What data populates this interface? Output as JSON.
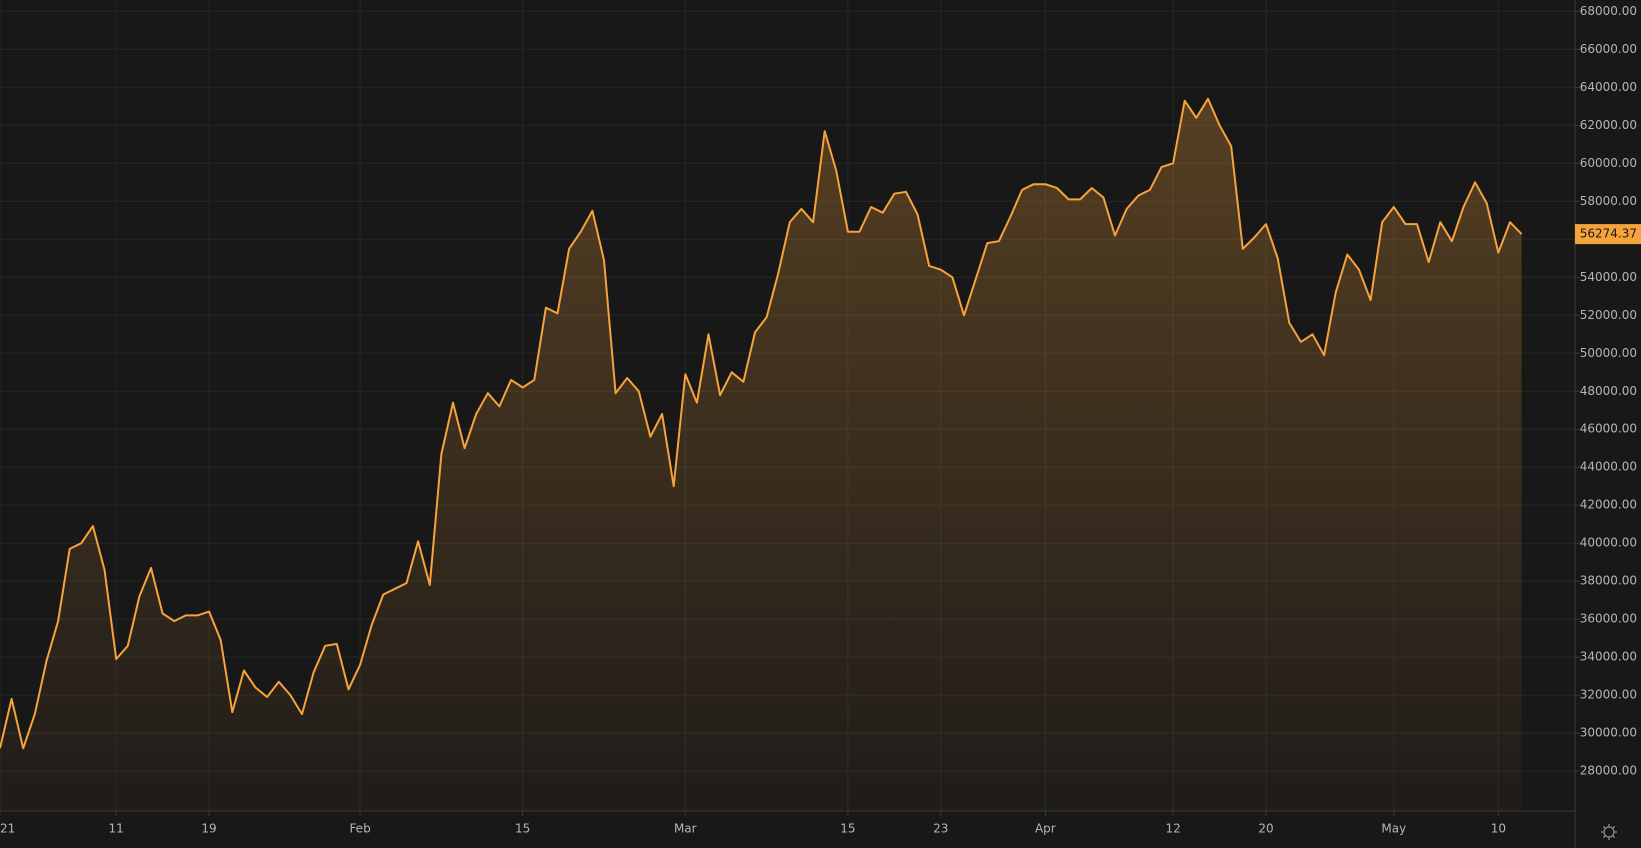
{
  "chart_data": {
    "type": "area",
    "values": [
      29200,
      31800,
      29200,
      31000,
      33800,
      35900,
      39700,
      40000,
      40900,
      38600,
      33900,
      34600,
      37200,
      38700,
      36300,
      35900,
      36200,
      36200,
      36400,
      34900,
      31100,
      33300,
      32400,
      31900,
      32700,
      32000,
      31000,
      33200,
      34600,
      34700,
      32300,
      33600,
      35700,
      37300,
      37600,
      37900,
      40100,
      37800,
      44700,
      47400,
      45000,
      46800,
      47900,
      47200,
      48600,
      48200,
      48600,
      52400,
      52100,
      55500,
      56400,
      57500,
      54900,
      47900,
      48700,
      48000,
      45600,
      46800,
      43000,
      48900,
      47400,
      51000,
      47800,
      49000,
      48500,
      51100,
      51900,
      54200,
      56900,
      57600,
      56900,
      61700,
      59600,
      56400,
      56400,
      57700,
      57400,
      58400,
      58500,
      57300,
      54600,
      54400,
      54000,
      52000,
      53900,
      55800,
      55900,
      57200,
      58600,
      58900,
      58900,
      58700,
      58100,
      58100,
      58700,
      58200,
      56200,
      57600,
      58300,
      58600,
      59800,
      60000,
      63300,
      62400,
      63400,
      62000,
      60900,
      55500,
      56100,
      56800,
      55000,
      51600,
      50600,
      51000,
      49900,
      53200,
      55200,
      54400,
      52800,
      56900,
      57700,
      56800,
      56800,
      54800,
      56900,
      55900,
      57700,
      59000,
      57900,
      55300,
      56900,
      56274.37
    ],
    "color": "#f7a33c",
    "grid": true,
    "xlim": [
      0,
      135.6
    ],
    "xticks": [
      {
        "value": 0,
        "label": "21"
      },
      {
        "value": 10,
        "label": "11"
      },
      {
        "value": 18,
        "label": "19"
      },
      {
        "value": 31,
        "label": "Feb"
      },
      {
        "value": 45,
        "label": "15"
      },
      {
        "value": 59,
        "label": "Mar"
      },
      {
        "value": 73,
        "label": "15"
      },
      {
        "value": 81,
        "label": "23"
      },
      {
        "value": 90,
        "label": "Apr"
      },
      {
        "value": 101,
        "label": "12"
      },
      {
        "value": 109,
        "label": "20"
      },
      {
        "value": 120,
        "label": "May"
      },
      {
        "value": 129,
        "label": "10"
      }
    ],
    "ylim": [
      25900,
      68600
    ],
    "yticks": [
      {
        "value": 28000,
        "label": "28000.00"
      },
      {
        "value": 30000,
        "label": "30000.00"
      },
      {
        "value": 32000,
        "label": "32000.00"
      },
      {
        "value": 34000,
        "label": "34000.00"
      },
      {
        "value": 36000,
        "label": "36000.00"
      },
      {
        "value": 38000,
        "label": "38000.00"
      },
      {
        "value": 40000,
        "label": "40000.00"
      },
      {
        "value": 42000,
        "label": "42000.00"
      },
      {
        "value": 44000,
        "label": "44000.00"
      },
      {
        "value": 46000,
        "label": "46000.00"
      },
      {
        "value": 48000,
        "label": "48000.00"
      },
      {
        "value": 50000,
        "label": "50000.00"
      },
      {
        "value": 52000,
        "label": "52000.00"
      },
      {
        "value": 54000,
        "label": "54000.00"
      },
      {
        "value": 56000,
        "label": "56000.00"
      },
      {
        "value": 58000,
        "label": "58000.00"
      },
      {
        "value": 60000,
        "label": "60000.00"
      },
      {
        "value": 62000,
        "label": "62000.00"
      },
      {
        "value": 64000,
        "label": "64000.00"
      },
      {
        "value": 66000,
        "label": "66000.00"
      },
      {
        "value": 68000,
        "label": "68000.00"
      }
    ]
  }
}
